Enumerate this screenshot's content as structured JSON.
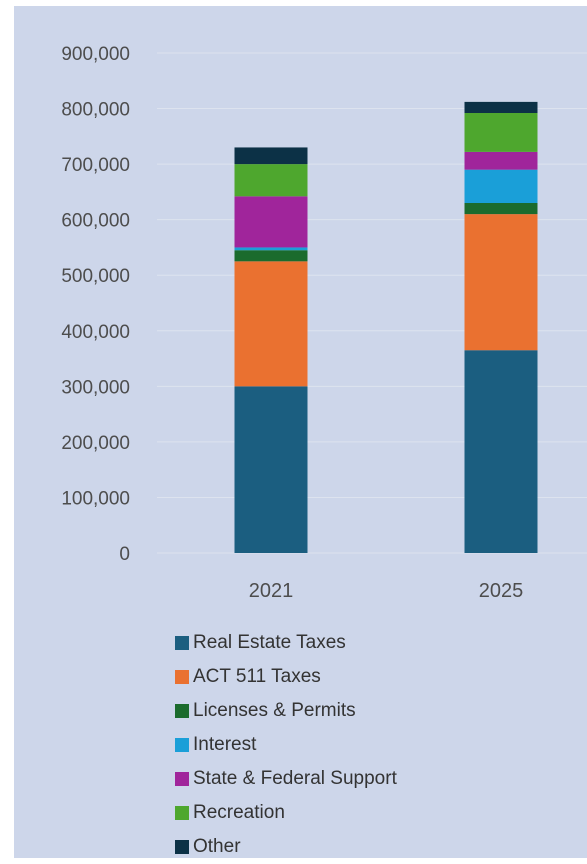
{
  "chart_data": {
    "type": "bar",
    "stacked": true,
    "categories": [
      "2021",
      "2025"
    ],
    "ylim": [
      0,
      900000
    ],
    "yticks": [
      {
        "value": 0,
        "label": "0"
      },
      {
        "value": 100000,
        "label": "100,000"
      },
      {
        "value": 200000,
        "label": "200,000"
      },
      {
        "value": 300000,
        "label": "300,000"
      },
      {
        "value": 400000,
        "label": "400,000"
      },
      {
        "value": 500000,
        "label": "500,000"
      },
      {
        "value": 600000,
        "label": "600,000"
      },
      {
        "value": 700000,
        "label": "700,000"
      },
      {
        "value": 800000,
        "label": "800,000"
      },
      {
        "value": 900000,
        "label": "900,000"
      }
    ],
    "grid": true,
    "legend_position": "bottom",
    "title": "",
    "xlabel": "",
    "ylabel": "",
    "series": [
      {
        "name": "Real Estate Taxes",
        "color": "#1b5e80",
        "values": [
          300000,
          365000
        ]
      },
      {
        "name": "ACT 511 Taxes",
        "color": "#ea7130",
        "values": [
          225000,
          245000
        ]
      },
      {
        "name": "Licenses & Permits",
        "color": "#1b6b2d",
        "values": [
          20000,
          20000
        ]
      },
      {
        "name": "Interest",
        "color": "#1a9fd8",
        "values": [
          5000,
          60000
        ]
      },
      {
        "name": "State & Federal Support",
        "color": "#a0259b",
        "values": [
          92000,
          32000
        ]
      },
      {
        "name": "Recreation",
        "color": "#4ea72e",
        "values": [
          58000,
          70000
        ]
      },
      {
        "name": "Other",
        "color": "#0c3146",
        "values": [
          30000,
          20000
        ]
      }
    ]
  }
}
